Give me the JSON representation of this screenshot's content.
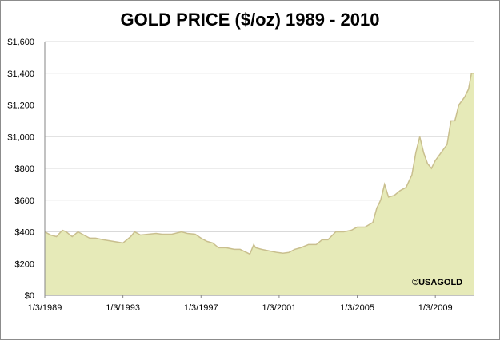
{
  "chart_data": {
    "type": "area",
    "title": "GOLD PRICE ($/oz) 1989 - 2010",
    "xlabel": "",
    "ylabel": "",
    "ylim": [
      0,
      1600
    ],
    "y_ticks": [
      "$0",
      "$200",
      "$400",
      "$600",
      "$800",
      "$1,000",
      "$1,200",
      "$1,400",
      "$1,600"
    ],
    "y_tick_values": [
      0,
      200,
      400,
      600,
      800,
      1000,
      1200,
      1400,
      1600
    ],
    "x_ticks": [
      "1/3/1989",
      "1/3/1993",
      "1/3/1997",
      "1/3/2001",
      "1/3/2005",
      "1/3/2009"
    ],
    "x_tick_values": [
      1989.0,
      1993.0,
      1997.0,
      2001.0,
      2005.0,
      2009.0
    ],
    "xlim": [
      1989.0,
      2011.0
    ],
    "grid": true,
    "credit": "©USAGOLD",
    "colors": {
      "fill": "#e6eab8",
      "line": "#c9bf8e",
      "grid": "#d9d9d9"
    },
    "series": [
      {
        "x": [
          1989.0,
          1989.3,
          1989.6,
          1989.9,
          1990.1,
          1990.4,
          1990.7,
          1991.0,
          1991.3,
          1991.6,
          1992.0,
          1992.5,
          1993.0,
          1993.4,
          1993.6,
          1993.9,
          1994.3,
          1994.7,
          1995.0,
          1995.5,
          1996.0,
          1996.3,
          1996.7,
          1997.0,
          1997.3,
          1997.6,
          1997.9,
          1998.3,
          1998.7,
          1999.0,
          1999.5,
          1999.7,
          1999.8,
          2000.1,
          2000.5,
          2000.9,
          2001.2,
          2001.5,
          2001.8,
          2002.1,
          2002.5,
          2002.9,
          2003.2,
          2003.5,
          2003.9,
          2004.3,
          2004.7,
          2005.0,
          2005.4,
          2005.8,
          2006.0,
          2006.2,
          2006.4,
          2006.6,
          2006.9,
          2007.2,
          2007.5,
          2007.8,
          2008.0,
          2008.2,
          2008.4,
          2008.6,
          2008.8,
          2009.0,
          2009.3,
          2009.6,
          2009.8,
          2010.0,
          2010.2,
          2010.5,
          2010.7,
          2010.85,
          2011.0
        ],
        "y": [
          400,
          380,
          370,
          410,
          400,
          370,
          400,
          380,
          360,
          360,
          350,
          340,
          330,
          370,
          400,
          380,
          385,
          390,
          385,
          385,
          400,
          390,
          385,
          360,
          340,
          330,
          300,
          300,
          290,
          290,
          260,
          320,
          300,
          290,
          280,
          270,
          265,
          270,
          290,
          300,
          320,
          320,
          350,
          350,
          400,
          400,
          410,
          430,
          430,
          460,
          550,
          600,
          700,
          620,
          630,
          660,
          680,
          760,
          900,
          1000,
          900,
          830,
          800,
          850,
          900,
          950,
          1100,
          1100,
          1200,
          1250,
          1300,
          1400,
          1400
        ]
      }
    ]
  }
}
